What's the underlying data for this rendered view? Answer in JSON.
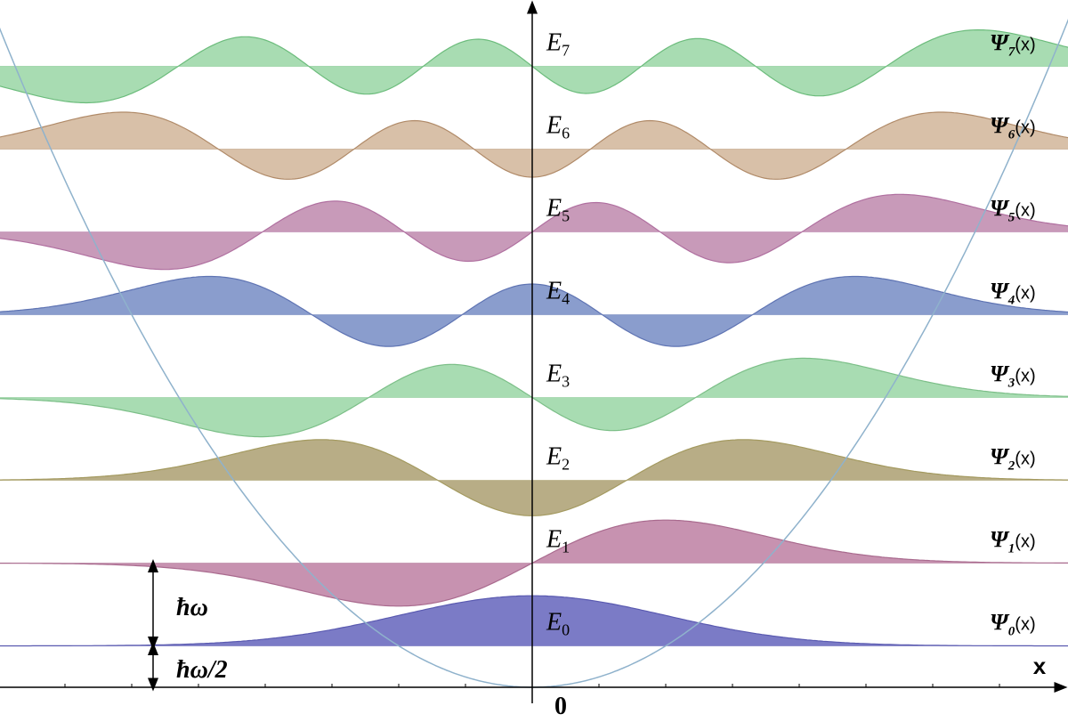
{
  "axes": {
    "x_label": "x",
    "origin_label": "0"
  },
  "levels": [
    {
      "energy": "E",
      "index": "0",
      "wavefunction": "Ψ",
      "argument": "(x)"
    },
    {
      "energy": "E",
      "index": "1",
      "wavefunction": "Ψ",
      "argument": "(x)"
    },
    {
      "energy": "E",
      "index": "2",
      "wavefunction": "Ψ",
      "argument": "(x)"
    },
    {
      "energy": "E",
      "index": "3",
      "wavefunction": "Ψ",
      "argument": "(x)"
    },
    {
      "energy": "E",
      "index": "4",
      "wavefunction": "Ψ",
      "argument": "(x)"
    },
    {
      "energy": "E",
      "index": "5",
      "wavefunction": "Ψ",
      "argument": "(x)"
    },
    {
      "energy": "E",
      "index": "6",
      "wavefunction": "Ψ",
      "argument": "(x)"
    },
    {
      "energy": "E",
      "index": "7",
      "wavefunction": "Ψ",
      "argument": "(x)"
    }
  ],
  "annotations": {
    "quantum": "ħω",
    "zero_point": "ħω/2"
  }
}
